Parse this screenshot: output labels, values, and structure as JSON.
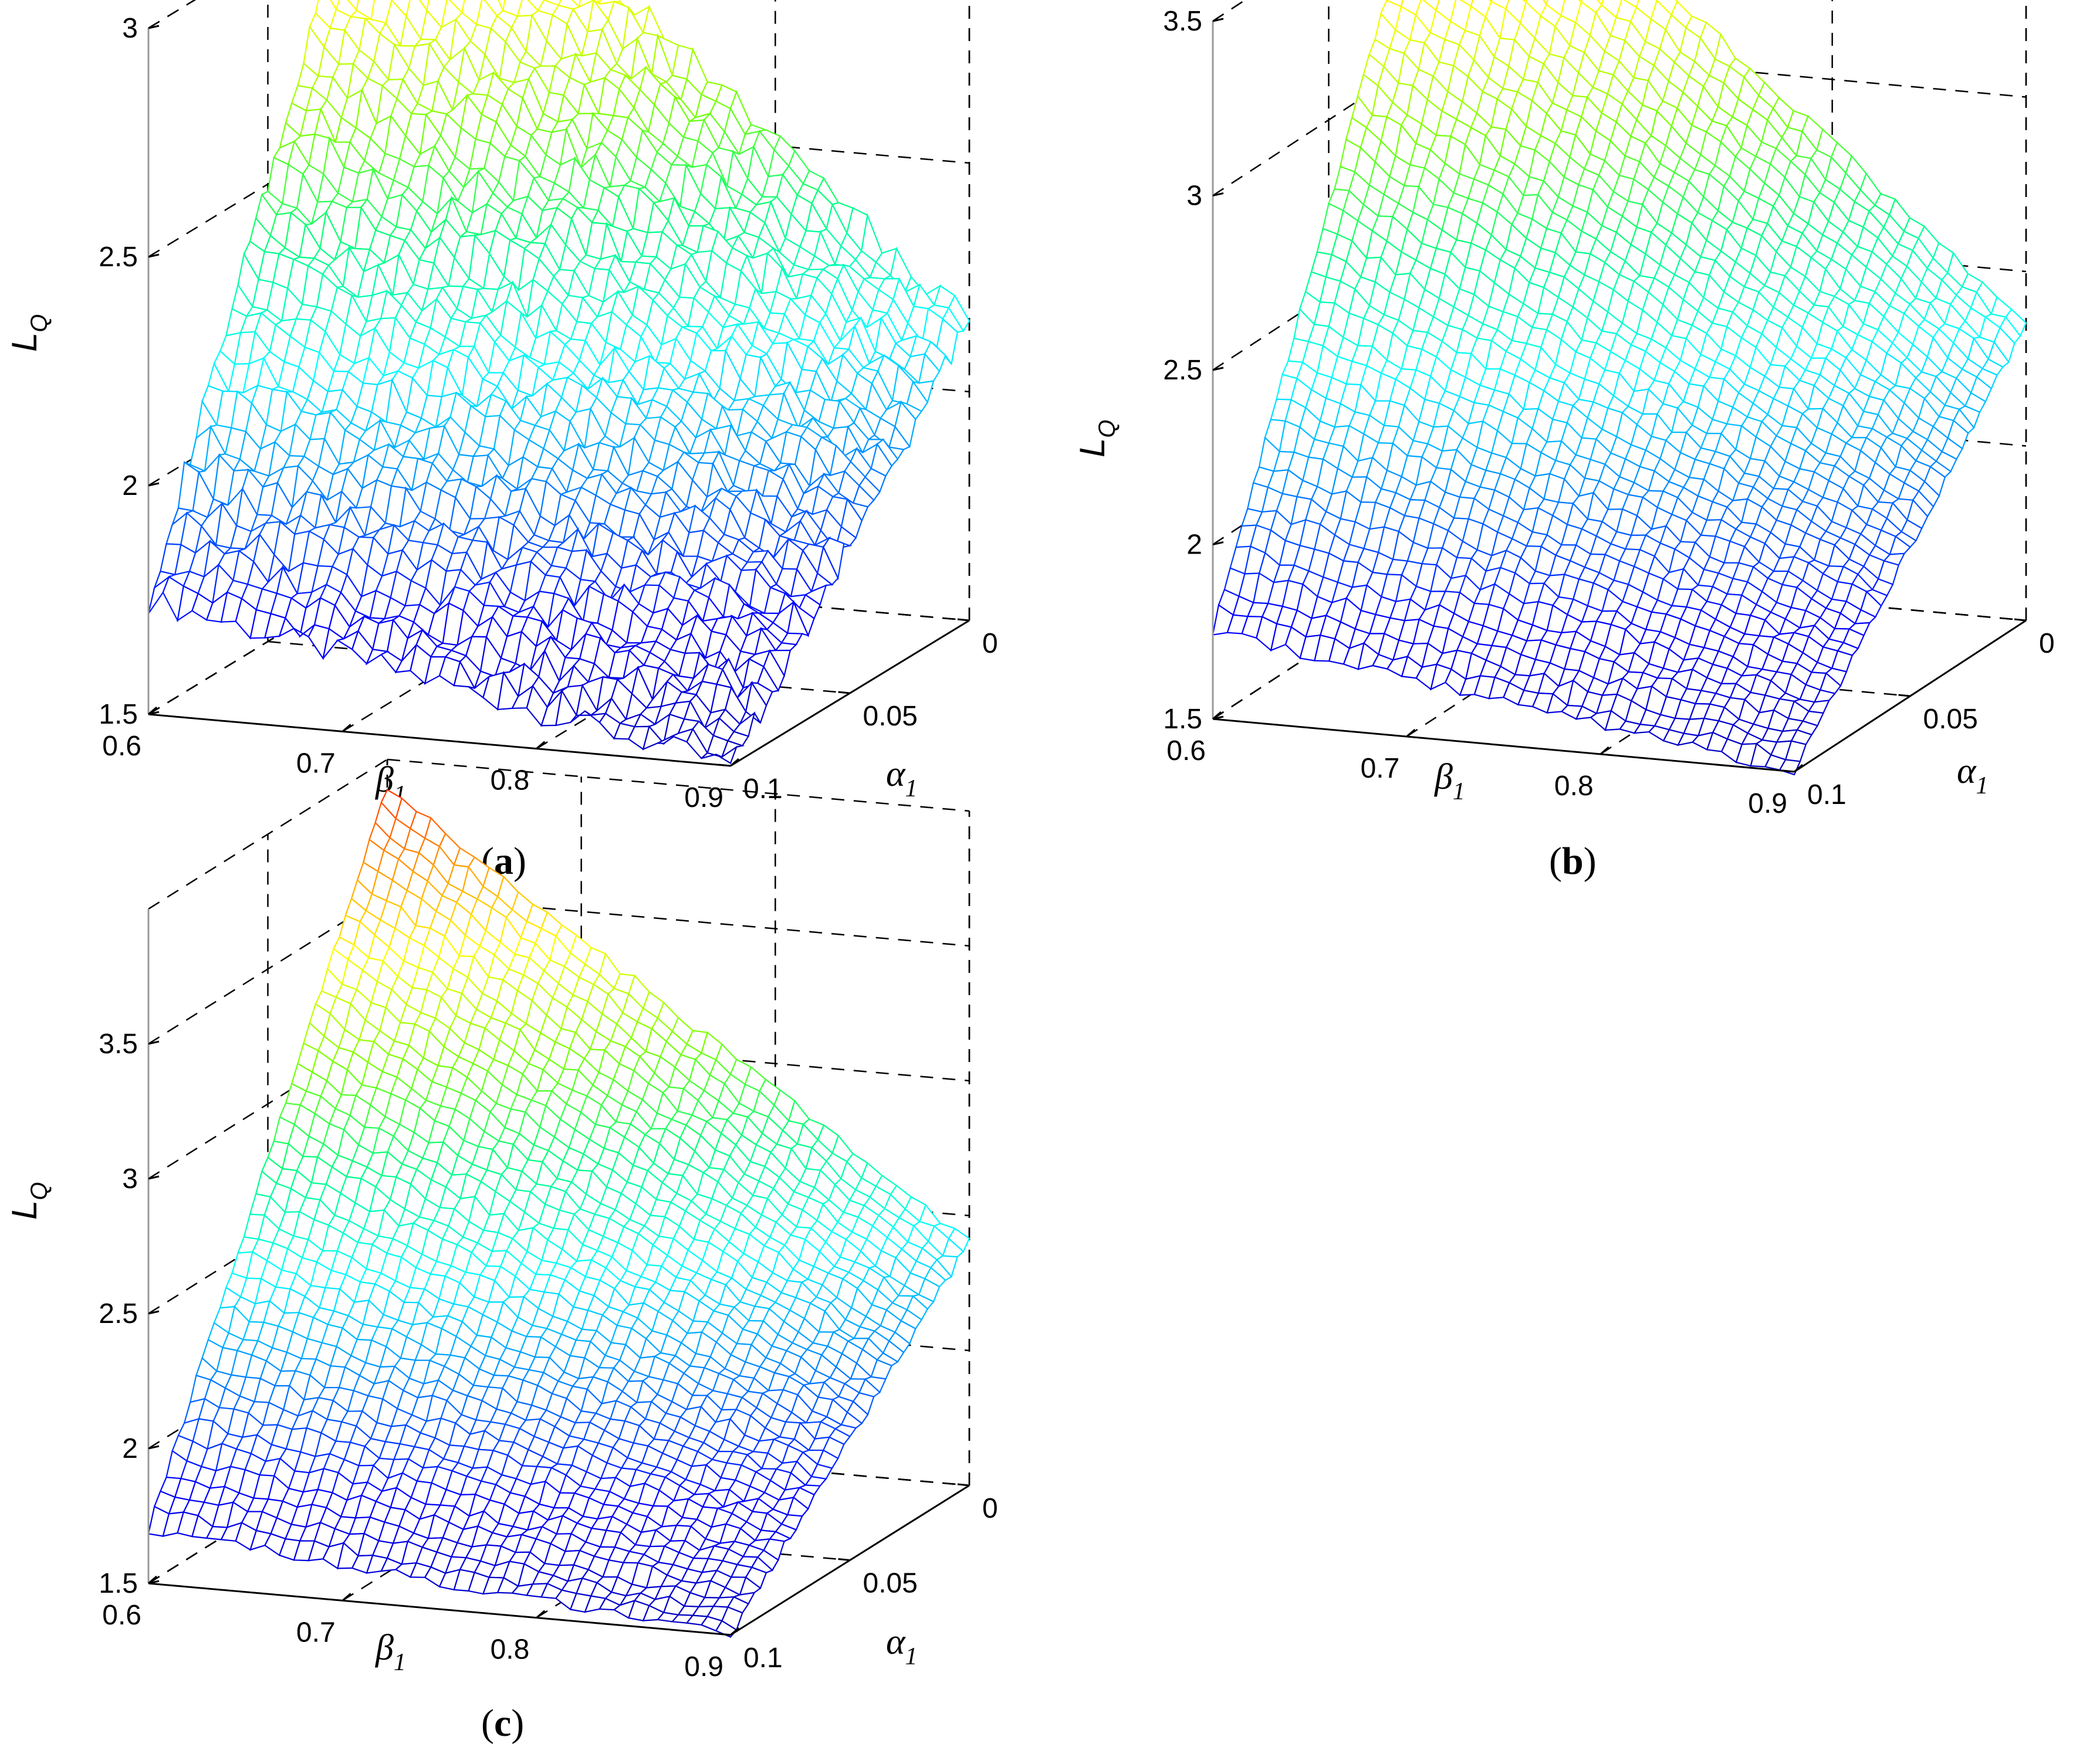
{
  "chart_data": [
    {
      "type": "surface",
      "panel_label": "a",
      "xlabel": "β",
      "xlabel_sub": "1",
      "ylabel": "α",
      "ylabel_sub": "1",
      "zlabel": "L",
      "zlabel_sub": "Q",
      "x_ticks": [
        "0.6",
        "0.7",
        "0.8",
        "0.9"
      ],
      "y_ticks": [
        "0",
        "0.05",
        "0.1"
      ],
      "z_ticks": [
        "1.5",
        "2",
        "2.5",
        "3"
      ],
      "xlim": [
        0.6,
        0.9
      ],
      "ylim": [
        0,
        0.1
      ],
      "zlim": [
        1.5,
        3.0
      ],
      "grid": true,
      "corner_values": {
        "beta_0.6_alpha_0": 3.25,
        "beta_0.9_alpha_0": 2.15,
        "beta_0.6_alpha_0.1": 1.75,
        "beta_0.9_alpha_0.1": 1.5
      },
      "roughness": 0.03
    },
    {
      "type": "surface",
      "panel_label": "b",
      "xlabel": "β",
      "xlabel_sub": "1",
      "ylabel": "α",
      "ylabel_sub": "1",
      "zlabel": "L",
      "zlabel_sub": "Q",
      "x_ticks": [
        "0.6",
        "0.7",
        "0.8",
        "0.9"
      ],
      "y_ticks": [
        "0",
        "0.05",
        "0.1"
      ],
      "z_ticks": [
        "1.5",
        "2",
        "2.5",
        "3",
        "3.5"
      ],
      "xlim": [
        0.6,
        0.9
      ],
      "ylim": [
        0,
        0.1
      ],
      "zlim": [
        1.5,
        3.5
      ],
      "grid": true,
      "corner_values": {
        "beta_0.6_alpha_0": 3.75,
        "beta_0.9_alpha_0": 2.35,
        "beta_0.6_alpha_0.1": 1.75,
        "beta_0.9_alpha_0.1": 1.5
      },
      "roughness": 0.012
    },
    {
      "type": "surface",
      "panel_label": "c",
      "xlabel": "β",
      "xlabel_sub": "1",
      "ylabel": "α",
      "ylabel_sub": "1",
      "zlabel": "L",
      "zlabel_sub": "Q",
      "x_ticks": [
        "0.6",
        "0.7",
        "0.8",
        "0.9"
      ],
      "y_ticks": [
        "0",
        "0.05",
        "0.1"
      ],
      "z_ticks": [
        "1.5",
        "2",
        "2.5",
        "3",
        "3.5"
      ],
      "xlim": [
        0.6,
        0.9
      ],
      "ylim": [
        0,
        0.1
      ],
      "zlim": [
        1.5,
        4.0
      ],
      "grid": true,
      "corner_values": {
        "beta_0.6_alpha_0": 3.9,
        "beta_0.9_alpha_0": 2.4,
        "beta_0.6_alpha_0.1": 1.7,
        "beta_0.9_alpha_0.1": 1.5
      },
      "roughness": 0.012
    }
  ],
  "captions": [
    {
      "open": "(",
      "letter": "a",
      "close": ")"
    },
    {
      "open": "(",
      "letter": "b",
      "close": ")"
    },
    {
      "open": "(",
      "letter": "c",
      "close": ")"
    }
  ],
  "colormap": [
    "#0000bb",
    "#0000ff",
    "#0080ff",
    "#00ffff",
    "#00ff80",
    "#80ff00",
    "#ffff00",
    "#ff8000",
    "#ff0000"
  ]
}
